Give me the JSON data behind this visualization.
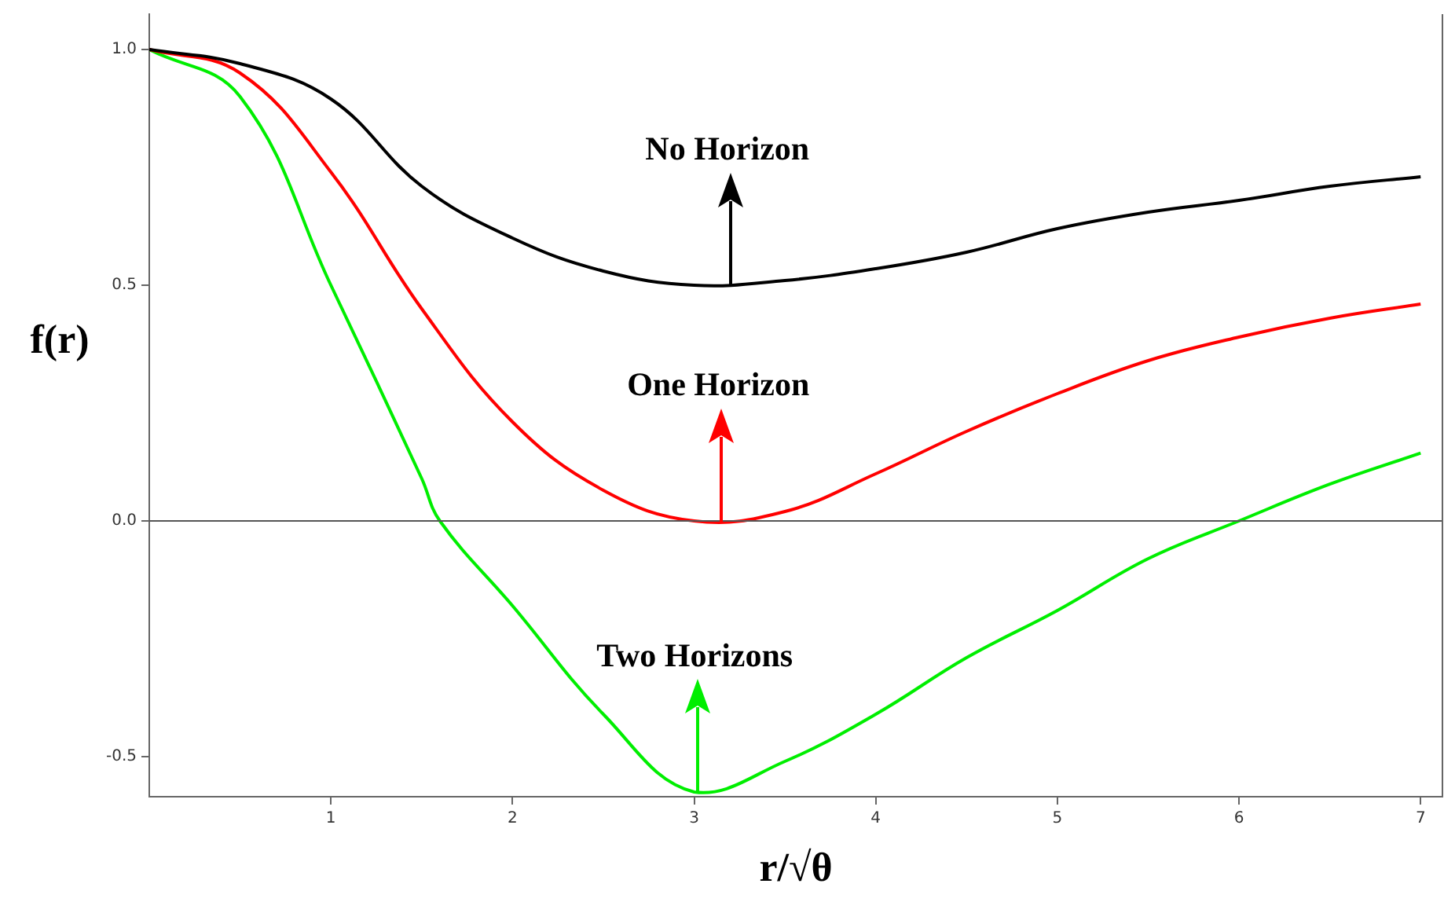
{
  "chart_data": {
    "type": "line",
    "xlabel": "r/√θ",
    "ylabel": "f(r)",
    "xlim": [
      0,
      7.12
    ],
    "ylim": [
      -0.585,
      1.075
    ],
    "xticks": [
      1,
      2,
      3,
      4,
      5,
      6,
      7
    ],
    "yticks": [
      {
        "value": 1,
        "label": "1.0"
      },
      {
        "value": 0.5,
        "label": "0.5"
      },
      {
        "value": 0,
        "label": "0.0"
      },
      {
        "value": -0.5,
        "label": "-0.5"
      }
    ],
    "x": [
      0,
      0.5,
      1,
      1.5,
      2,
      2.5,
      3,
      3.5,
      4,
      4.5,
      5,
      5.5,
      6,
      6.5,
      7
    ],
    "series": [
      {
        "color": "#000000",
        "values": [
          1,
          0.97,
          0.895,
          0.71,
          0.6,
          0.53,
          0.5,
          0.51,
          0.535,
          0.57,
          0.62,
          0.655,
          0.68,
          0.71,
          0.73
        ]
      },
      {
        "color": "#ff0000",
        "values": [
          1,
          0.95,
          0.74,
          0.45,
          0.21,
          0.065,
          0,
          0.02,
          0.1,
          0.19,
          0.27,
          0.34,
          0.39,
          0.43,
          0.46
        ]
      },
      {
        "color": "#00ee00",
        "x": [
          0,
          0.5,
          1,
          1.5,
          1.6,
          2,
          2.5,
          3,
          3.5,
          4,
          4.5,
          5,
          5.5,
          6,
          6.5,
          7
        ],
        "values": [
          1,
          0.9,
          0.5,
          0.09,
          0,
          -0.18,
          -0.41,
          -0.575,
          -0.51,
          -0.41,
          -0.29,
          -0.19,
          -0.08,
          0,
          0.078,
          0.144
        ]
      }
    ],
    "ref_lines": [
      {
        "axis": "y",
        "value": 0,
        "color": "#555555"
      }
    ],
    "annotations": [
      {
        "text": "No Horizon",
        "x": 3.2,
        "y": 0.5
      },
      {
        "text": "One Horizon",
        "x": 3.15,
        "y": 0
      },
      {
        "text": "Two Horizons",
        "x": 3.02,
        "y": -0.575
      }
    ],
    "grid": false,
    "legend": false,
    "marker": "none",
    "line_style": "solid"
  }
}
